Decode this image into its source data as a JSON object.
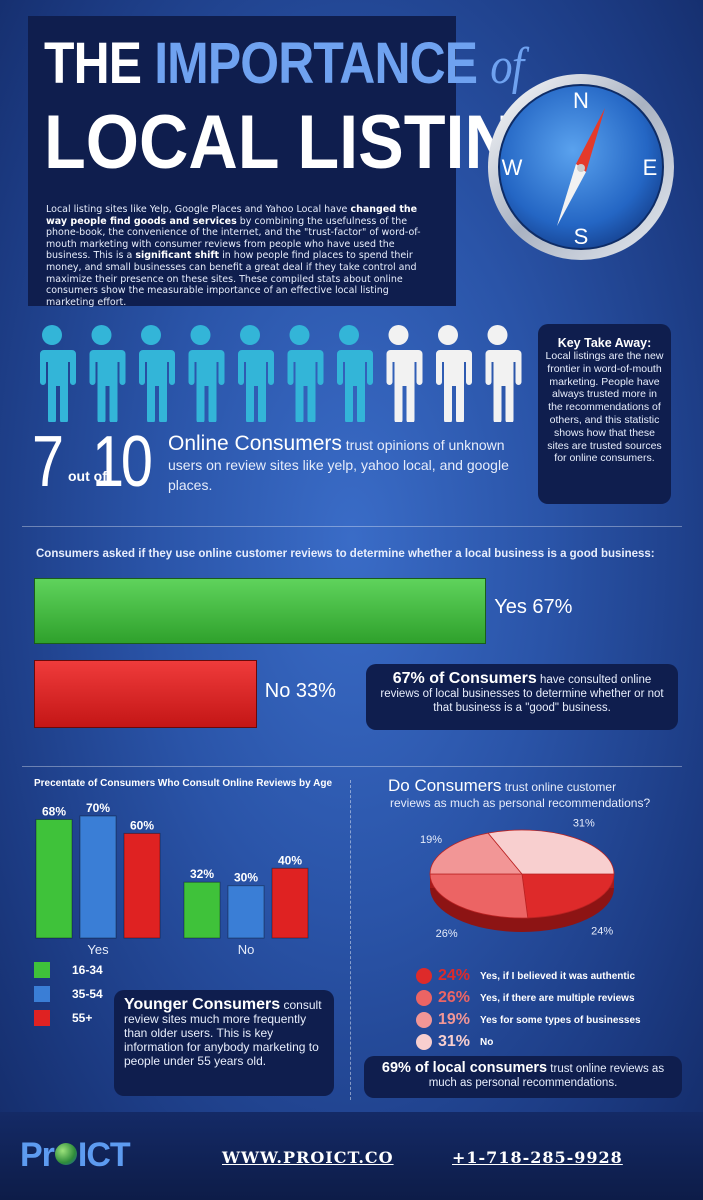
{
  "header": {
    "title_the": "THE",
    "title_importance": "IMPORTANCE",
    "title_of": "of",
    "title_line2": "LOCAL LISTINGS",
    "intro_1": "Local listing sites like Yelp, Google Places and Yahoo Local have ",
    "intro_b1": "changed the way people find goods and services",
    "intro_2": " by combining the usefulness of the phone-book, the convenience of the internet, and the \"trust-factor\" of word-of-mouth marketing with consumer reviews from people who have used the business. This is a ",
    "intro_b2": "significant shift",
    "intro_3": " in how people find places to spend their money, and small businesses can benefit a great deal if they take control and maximize their presence on these sites. These compiled stats about online consumers show the measurable importance of an effective local listing marketing effort."
  },
  "compass": {
    "n": "N",
    "e": "E",
    "s": "S",
    "w": "W"
  },
  "people": {
    "total": 10,
    "highlighted": 7,
    "highlight_color": "#33b5d8",
    "other_color": "#f2f2f2"
  },
  "stat": {
    "seven": "7",
    "out_of": "out of",
    "ten": "10",
    "lead": "Online Consumers",
    "rest": " trust opinions of unknown users on review sites like yelp, yahoo local, and google places."
  },
  "takeaway": {
    "title": "Key Take Away:",
    "text": "Local listings are the new frontier in word-of-mouth marketing. People have always trusted more in the recommendations of others, and this statistic shows how that these sites are trusted sources for online consumers."
  },
  "reviews_question": "Consumers asked if they use online customer reviews to determine whether a local business is a good business:",
  "consult": {
    "lead": "67% of Consumers",
    "rest": " have consulted online reviews of local businesses to determine whether or not that business is a \"good\" business."
  },
  "age_title": "Precentate of Consumers Who Consult Online Reviews by Age",
  "younger": {
    "lead": "Younger Consumers",
    "rest": " consult review sites much more frequently than older users. This is key information for anybody marketing to people under 55 years old."
  },
  "pie_question": {
    "lead": "Do Consumers",
    "small": " trust online customer",
    "line2": "reviews as much as personal recommendations?"
  },
  "local": {
    "lead": "69% of local consumers",
    "rest": " trust online reviews as much as personal recommendations."
  },
  "footer": {
    "logo_pr": "Pr",
    "logo_ict": "ICT",
    "website": "WWW.PROICT.CO",
    "phone": "+1-718-285-9928"
  },
  "chart_data": [
    {
      "type": "bar",
      "orientation": "horizontal",
      "categories": [
        "Yes",
        "No"
      ],
      "values": [
        67,
        33
      ],
      "value_labels": [
        "Yes 67%",
        "No 33%"
      ],
      "colors": [
        "#44c441",
        "#e02828"
      ],
      "xlim": [
        0,
        100
      ]
    },
    {
      "type": "bar",
      "title": "Precentate of Consumers Who Consult Online Reviews by Age",
      "categories": [
        "Yes",
        "No"
      ],
      "series": [
        {
          "name": "16-34",
          "values": [
            68,
            32
          ],
          "labels": [
            "68%",
            "32%"
          ],
          "color": "#3fc23a"
        },
        {
          "name": "35-54",
          "values": [
            70,
            30
          ],
          "labels": [
            "70%",
            "30%"
          ],
          "color": "#3a7ed6"
        },
        {
          "name": "55+",
          "values": [
            60,
            40
          ],
          "labels": [
            "60%",
            "40%"
          ],
          "color": "#df2222"
        }
      ],
      "ylim": [
        0,
        70
      ],
      "legend": "bottom-left"
    },
    {
      "type": "pie",
      "slices": [
        {
          "label": "Yes, if I believed it was authentic",
          "value": 24,
          "pct": "24%",
          "color": "#de2a2a"
        },
        {
          "label": "Yes, if there are multiple reviews",
          "value": 26,
          "pct": "26%",
          "color": "#ec6464"
        },
        {
          "label": "Yes for some types of businesses",
          "value": 19,
          "pct": "19%",
          "color": "#f29696"
        },
        {
          "label": "No",
          "value": 31,
          "pct": "31%",
          "color": "#f8cfcf"
        }
      ],
      "legend": "bottom"
    }
  ]
}
